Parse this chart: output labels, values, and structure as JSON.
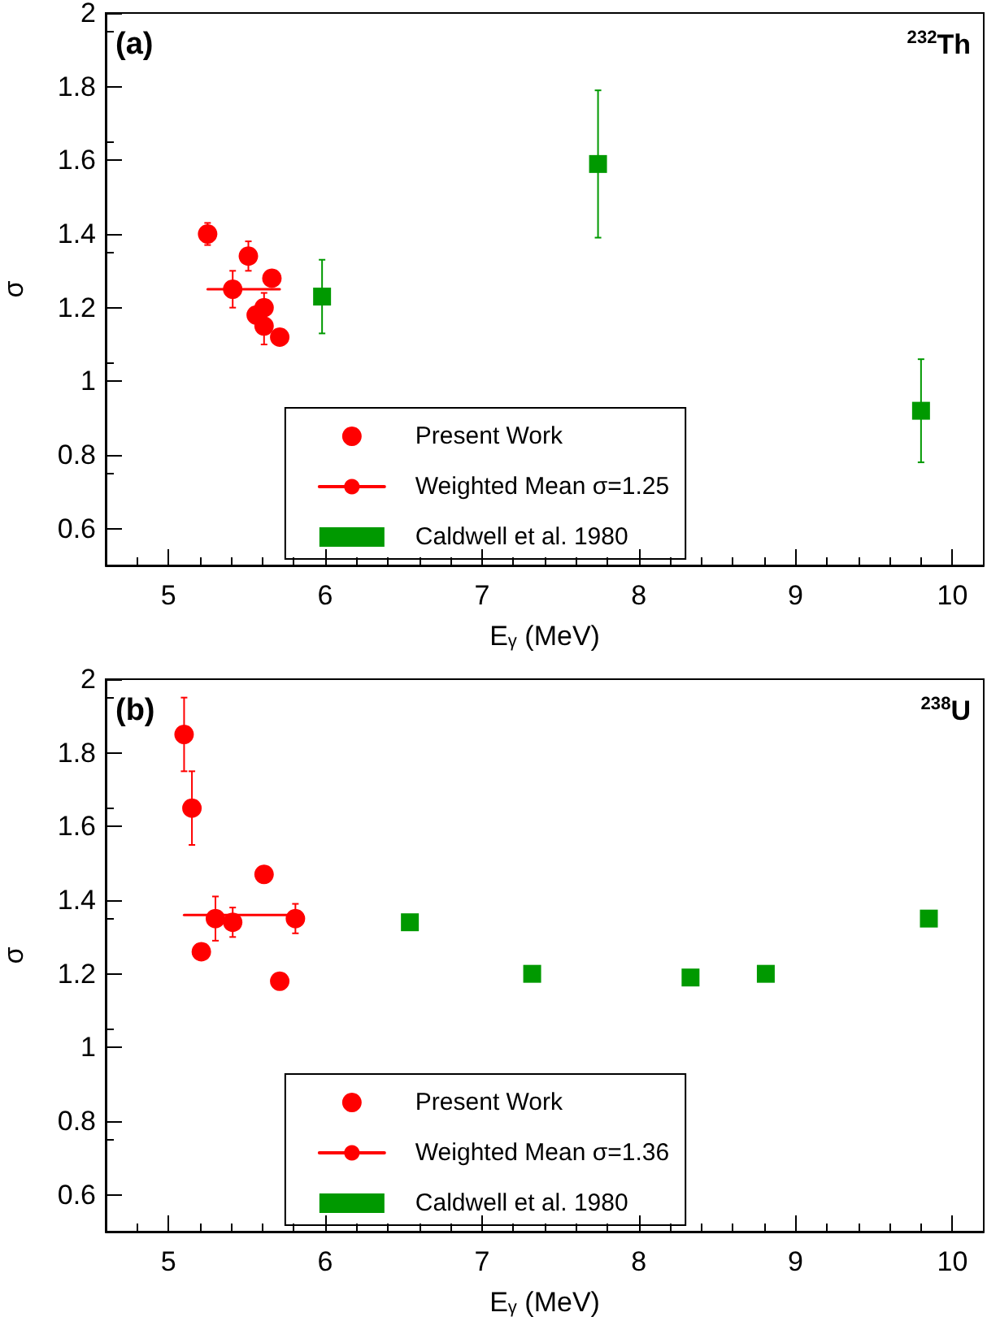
{
  "chart_data": [
    {
      "type": "scatter",
      "xlabel": "E$_{γ}$ (MeV)",
      "ylabel": "σ",
      "annotations": [
        "(a)",
        "$^{232}$Th"
      ],
      "xlim": [
        4.6,
        10.2
      ],
      "xticks": [
        5,
        6,
        7,
        8,
        9,
        10
      ],
      "ylim": [
        0.5,
        2
      ],
      "yticks": [
        0.6,
        0.8,
        1,
        1.2,
        1.4,
        1.6,
        1.8,
        2
      ],
      "legend": "bottom",
      "series": [
        {
          "name": "Present Work",
          "marker": "circle",
          "color": "#ff0000",
          "x": [
            5.25,
            5.51,
            5.41,
            5.66,
            5.61,
            5.56,
            5.61,
            5.71
          ],
          "values": [
            1.4,
            1.34,
            1.25,
            1.28,
            1.2,
            1.18,
            1.15,
            1.12
          ],
          "errors": [
            0.03,
            0.04,
            0.05,
            0.02,
            0.04,
            null,
            0.05,
            null
          ]
        },
        {
          "name": "Weighted Mean σ=1.25",
          "type": "line",
          "marker": "none",
          "color": "#ff0000",
          "x": [
            5.25,
            5.71
          ],
          "values": [
            1.25,
            1.25
          ]
        },
        {
          "name": "Caldwell et al. 1980",
          "marker": "square",
          "color": "#009900",
          "x": [
            5.98,
            7.74,
            9.8
          ],
          "values": [
            1.23,
            1.59,
            0.92
          ],
          "errors": [
            0.1,
            0.2,
            0.14
          ]
        }
      ]
    },
    {
      "type": "scatter",
      "xlabel": "E$_{γ}$ (MeV)",
      "ylabel": "σ",
      "annotations": [
        "(b)",
        "$^{238}$U"
      ],
      "xlim": [
        4.6,
        10.2
      ],
      "xticks": [
        5,
        6,
        7,
        8,
        9,
        10
      ],
      "ylim": [
        0.5,
        2
      ],
      "yticks": [
        0.6,
        0.8,
        1,
        1.2,
        1.4,
        1.6,
        1.8,
        2
      ],
      "legend": "bottom",
      "series": [
        {
          "name": "Present Work",
          "marker": "circle",
          "color": "#ff0000",
          "x": [
            5.1,
            5.15,
            5.61,
            5.3,
            5.41,
            5.81,
            5.21,
            5.71
          ],
          "values": [
            1.85,
            1.65,
            1.47,
            1.35,
            1.34,
            1.35,
            1.26,
            1.18
          ],
          "errors": [
            0.1,
            0.1,
            null,
            0.06,
            0.04,
            0.04,
            null,
            null
          ]
        },
        {
          "name": "Weighted Mean σ=1.36",
          "type": "line",
          "marker": "none",
          "color": "#ff0000",
          "x": [
            5.1,
            5.81
          ],
          "values": [
            1.36,
            1.36
          ]
        },
        {
          "name": "Caldwell et al. 1980",
          "marker": "square",
          "color": "#009900",
          "x": [
            6.54,
            7.32,
            8.33,
            8.81,
            9.85
          ],
          "values": [
            1.34,
            1.2,
            1.19,
            1.2,
            1.35
          ]
        }
      ]
    }
  ]
}
